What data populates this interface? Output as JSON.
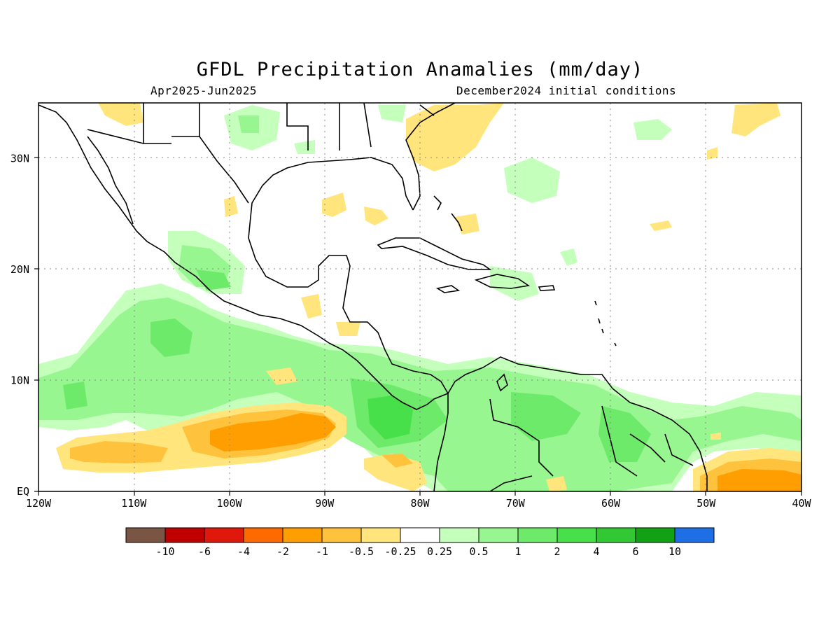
{
  "title": "GFDL Precipitation Anamalies (mm/day)",
  "subtitle_left": "Apr2025-Jun2025",
  "subtitle_right": "December2024 initial conditions",
  "map": {
    "lon_range": [
      -120,
      -40
    ],
    "lat_range": [
      0,
      35
    ],
    "lon_ticks": [
      "120W",
      "110W",
      "100W",
      "90W",
      "80W",
      "70W",
      "60W",
      "50W",
      "40W"
    ],
    "lat_ticks": [
      "EQ",
      "10N",
      "20N",
      "30N"
    ],
    "gridlines": true
  },
  "colorbar": {
    "colors": [
      "#7b5544",
      "#c00000",
      "#e0180c",
      "#ff6a00",
      "#ff9e00",
      "#ffc23c",
      "#ffe57c",
      "#ffffff",
      "#c4ffbc",
      "#98f690",
      "#6eea6a",
      "#48e04a",
      "#32c834",
      "#12a014",
      "#1e6ee6"
    ],
    "labels": [
      "-10",
      "-6",
      "-4",
      "-2",
      "-1",
      "-0.5",
      "-0.25",
      "0.25",
      "0.5",
      "1",
      "2",
      "4",
      "6",
      "10"
    ]
  }
}
